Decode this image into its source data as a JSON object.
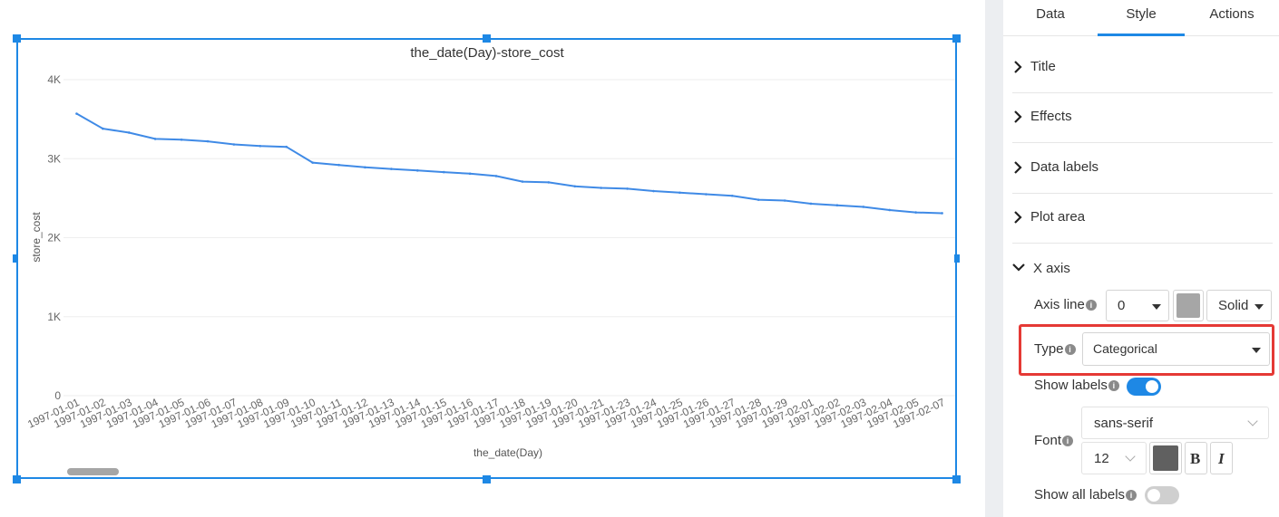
{
  "chart_data": {
    "type": "line",
    "title": "the_date(Day)-store_cost",
    "xlabel": "the_date(Day)",
    "ylabel": "store_cost",
    "ylim": [
      0,
      4000
    ],
    "yticks": [
      "0",
      "1K",
      "2K",
      "3K",
      "4K"
    ],
    "categories": [
      "1997-01-01",
      "1997-01-02",
      "1997-01-03",
      "1997-01-04",
      "1997-01-05",
      "1997-01-06",
      "1997-01-07",
      "1997-01-08",
      "1997-01-09",
      "1997-01-10",
      "1997-01-11",
      "1997-01-12",
      "1997-01-13",
      "1997-01-14",
      "1997-01-15",
      "1997-01-16",
      "1997-01-17",
      "1997-01-18",
      "1997-01-19",
      "1997-01-20",
      "1997-01-21",
      "1997-01-23",
      "1997-01-24",
      "1997-01-25",
      "1997-01-26",
      "1997-01-27",
      "1997-01-28",
      "1997-01-29",
      "1997-02-01",
      "1997-02-02",
      "1997-02-03",
      "1997-02-04",
      "1997-02-05",
      "1997-02-07"
    ],
    "series": [
      {
        "values": [
          3570,
          3380,
          3330,
          3250,
          3240,
          3220,
          3180,
          3160,
          3150,
          2950,
          2920,
          2890,
          2870,
          2850,
          2830,
          2810,
          2780,
          2710,
          2700,
          2650,
          2630,
          2620,
          2590,
          2570,
          2550,
          2530,
          2480,
          2470,
          2430,
          2410,
          2390,
          2350,
          2320,
          2310
        ]
      }
    ],
    "grid": true,
    "line_color": "#3f8ae6"
  },
  "panel": {
    "tabs": [
      {
        "label": "Data"
      },
      {
        "label": "Style"
      },
      {
        "label": "Actions"
      }
    ],
    "active_tab": "Style",
    "sections": {
      "title": "Title",
      "effects": "Effects",
      "data_labels": "Data labels",
      "plot_area": "Plot area",
      "x_axis": "X axis"
    },
    "x_axis": {
      "axis_line_label": "Axis line",
      "axis_line_width": "0",
      "axis_line_color": "#a6a6a6",
      "axis_line_style": "Solid",
      "type_label": "Type",
      "type_value": "Categorical",
      "show_labels_label": "Show labels",
      "show_labels_on": true,
      "font_label": "Font",
      "font_family": "sans-serif",
      "font_size": "12",
      "font_color": "#606060",
      "bold_label": "B",
      "italic_label": "I",
      "show_all_labels_label": "Show all labels",
      "show_all_labels_on": false,
      "info_glyph": "i"
    }
  }
}
